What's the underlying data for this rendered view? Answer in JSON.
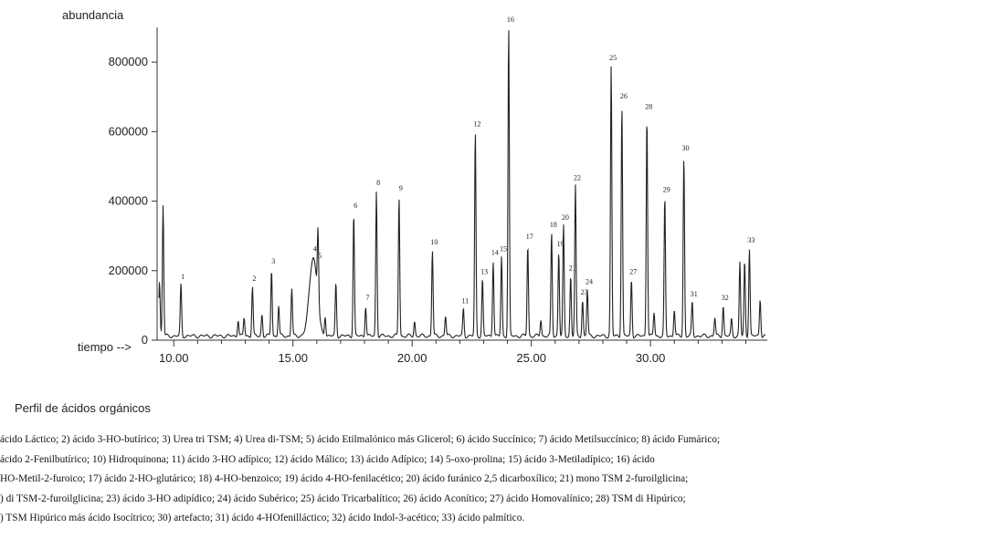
{
  "chart_data": {
    "type": "line",
    "ylabel": "abundancia",
    "xlabel": "tiempo -->",
    "xlim": [
      9.3,
      34.9
    ],
    "ylim": [
      0,
      900000
    ],
    "yticks": [
      "0",
      "200000",
      "400000",
      "600000",
      "800000"
    ],
    "ytick_values": [
      0,
      200000,
      400000,
      600000,
      800000
    ],
    "xticks": [
      "10.00",
      "15.00",
      "20.00",
      "25.00",
      "30.00"
    ],
    "xtick_values": [
      10,
      15,
      20,
      25,
      30
    ],
    "peaks": [
      {
        "label": "",
        "x": 9.55,
        "y": 390000
      },
      {
        "label": "",
        "x": 9.4,
        "y": 170000
      },
      {
        "label": "1",
        "x": 10.3,
        "y": 160000
      },
      {
        "label": "",
        "x": 12.7,
        "y": 60000
      },
      {
        "label": "",
        "x": 12.95,
        "y": 65000
      },
      {
        "label": "2",
        "x": 13.3,
        "y": 155000
      },
      {
        "label": "",
        "x": 13.7,
        "y": 75000
      },
      {
        "label": "3",
        "x": 14.1,
        "y": 205000
      },
      {
        "label": "",
        "x": 14.4,
        "y": 100000
      },
      {
        "label": "",
        "x": 14.95,
        "y": 150000
      },
      {
        "label": "4",
        "x": 15.85,
        "y": 240000
      },
      {
        "label": "5",
        "x": 16.05,
        "y": 220000
      },
      {
        "label": "",
        "x": 16.35,
        "y": 70000
      },
      {
        "label": "",
        "x": 16.8,
        "y": 165000
      },
      {
        "label": "6",
        "x": 17.55,
        "y": 365000
      },
      {
        "label": "7",
        "x": 18.05,
        "y": 100000
      },
      {
        "label": "8",
        "x": 18.5,
        "y": 430000
      },
      {
        "label": "9",
        "x": 19.45,
        "y": 415000
      },
      {
        "label": "",
        "x": 20.1,
        "y": 55000
      },
      {
        "label": "10",
        "x": 20.85,
        "y": 260000
      },
      {
        "label": "",
        "x": 21.4,
        "y": 70000
      },
      {
        "label": "11",
        "x": 22.15,
        "y": 90000
      },
      {
        "label": "12",
        "x": 22.65,
        "y": 600000
      },
      {
        "label": "13",
        "x": 22.95,
        "y": 175000
      },
      {
        "label": "14",
        "x": 23.4,
        "y": 230000
      },
      {
        "label": "15",
        "x": 23.75,
        "y": 240000
      },
      {
        "label": "16",
        "x": 24.05,
        "y": 900000
      },
      {
        "label": "17",
        "x": 24.85,
        "y": 275000
      },
      {
        "label": "",
        "x": 25.4,
        "y": 60000
      },
      {
        "label": "18",
        "x": 25.85,
        "y": 310000
      },
      {
        "label": "19",
        "x": 26.15,
        "y": 255000
      },
      {
        "label": "20",
        "x": 26.35,
        "y": 330000
      },
      {
        "label": "21",
        "x": 26.65,
        "y": 185000
      },
      {
        "label": "22",
        "x": 26.85,
        "y": 445000
      },
      {
        "label": "23",
        "x": 27.15,
        "y": 115000
      },
      {
        "label": "24",
        "x": 27.35,
        "y": 145000
      },
      {
        "label": "25",
        "x": 28.35,
        "y": 790000
      },
      {
        "label": "26",
        "x": 28.8,
        "y": 680000
      },
      {
        "label": "27",
        "x": 29.2,
        "y": 175000
      },
      {
        "label": "28",
        "x": 29.85,
        "y": 650000
      },
      {
        "label": "",
        "x": 30.15,
        "y": 80000
      },
      {
        "label": "29",
        "x": 30.6,
        "y": 410000
      },
      {
        "label": "",
        "x": 31.0,
        "y": 90000
      },
      {
        "label": "30",
        "x": 31.4,
        "y": 530000
      },
      {
        "label": "31",
        "x": 31.75,
        "y": 110000
      },
      {
        "label": "",
        "x": 32.7,
        "y": 65000
      },
      {
        "label": "32",
        "x": 33.05,
        "y": 100000
      },
      {
        "label": "",
        "x": 33.4,
        "y": 60000
      },
      {
        "label": "",
        "x": 33.75,
        "y": 225000
      },
      {
        "label": "",
        "x": 33.95,
        "y": 225000
      },
      {
        "label": "33",
        "x": 34.15,
        "y": 265000
      },
      {
        "label": "",
        "x": 34.6,
        "y": 120000
      }
    ]
  },
  "figure_title": "Perfil de ácidos orgánicos",
  "caption_lines": [
    "ácido Láctico; 2) ácido 3-HO-butírico; 3) Urea tri TSM; 4) Urea di-TSM; 5) ácido Etilmalónico más Glicerol; 6) ácido Succínico; 7) ácido Metilsuccínico; 8) ácido Fumárico;",
    "ácido 2-Fenilbutírico; 10) Hidroquinona; 11) ácido 3-HO adípico;  12) ácido Málico; 13) ácido Adípico; 14) 5-oxo-prolina; 15) ácido 3-Metiladípico; 16) ácido",
    "HO-Metil-2-furoico; 17) ácido 2-HO-glutárico; 18) 4-HO-benzoico; 19) ácido 4-HO-fenilacético; 20) ácido furánico 2,5 dicarboxílico; 21) mono TSM 2-furoilglicina;",
    ") di TSM-2-furoilglicina; 23) ácido 3-HO adipídico; 24) ácido Subérico; 25) ácido Tricarbalítico; 26) ácido Aconítico; 27) ácido Homovalínico; 28) TSM di Hipúrico;",
    ") TSM Hipúrico más ácido Isocítrico; 30) artefacto; 31) ácido 4-HOfenilláctico; 32) ácido Indol-3-acético; 33) ácido palmítico."
  ]
}
